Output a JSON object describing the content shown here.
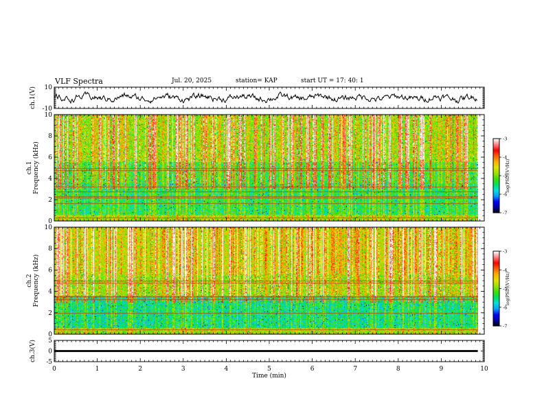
{
  "header": {
    "title": "VLF Spectra",
    "date": "Jul. 20, 2025",
    "station": "station= KAP",
    "start": "start UT = 17: 40: 1"
  },
  "colors": {
    "colormap": [
      "#000000",
      "#0000a0",
      "#0000ff",
      "#00a0ff",
      "#00e0e0",
      "#00e060",
      "#40e000",
      "#a0e000",
      "#e0e000",
      "#ffb000",
      "#ff6000",
      "#ff0000",
      "#ff8080",
      "#ffffff"
    ]
  },
  "chart_data": [
    {
      "type": "line",
      "name": "ch1-waveform",
      "ylabel": "ch.1(V)",
      "ylim": [
        -10,
        10
      ],
      "yticks": [
        "10",
        "-10"
      ],
      "xlim": [
        0,
        10
      ],
      "approx_range": [
        -5,
        5
      ]
    },
    {
      "type": "heatmap",
      "name": "ch1-spectrogram",
      "ylabel": "ch.1\nFrequency (kHz)",
      "ylabel_lines": [
        "ch.1",
        "Frequency (kHz)"
      ],
      "ylim": [
        0,
        10
      ],
      "yticks": [
        "0",
        "2",
        "4",
        "6",
        "8",
        "10"
      ],
      "xlim": [
        0,
        9.85
      ],
      "colorbar": {
        "label": "log(PSD)(V²/Hz)",
        "range": [
          -7,
          -3
        ],
        "ticks": [
          "-3",
          "-4",
          "-5",
          "-6",
          "-7"
        ]
      },
      "horizontal_lines_khz": [
        0.35,
        1.7,
        2.2,
        2.3,
        2.75,
        3.2,
        4.8,
        5.0
      ]
    },
    {
      "type": "heatmap",
      "name": "ch2-spectrogram",
      "ylabel": "ch.2\nFrequency (kHz)",
      "ylabel_lines": [
        "ch.2",
        "Frequency (kHz)"
      ],
      "ylim": [
        0,
        10
      ],
      "yticks": [
        "0",
        "2",
        "4",
        "6",
        "8",
        "10"
      ],
      "xlim": [
        0,
        9.85
      ],
      "colorbar": {
        "label": "log(PSD)(V²/Hz)",
        "range": [
          -7,
          -3
        ],
        "ticks": [
          "-3",
          "-4",
          "-5",
          "-6",
          "-7"
        ]
      },
      "horizontal_lines_khz": [
        0.45,
        2.0,
        3.3,
        3.5,
        4.8,
        5.0
      ]
    },
    {
      "type": "line",
      "name": "ch3-waveform",
      "ylabel": "ch.3(V)",
      "ylim": [
        -5,
        5
      ],
      "yticks": [
        "5",
        "0",
        "-5"
      ],
      "xlim": [
        0,
        10
      ],
      "approx_range": [
        -0.5,
        0.5
      ]
    }
  ],
  "xaxis": {
    "label": "Time (min)",
    "ticks": [
      "0",
      "1",
      "2",
      "3",
      "4",
      "5",
      "6",
      "7",
      "8",
      "9",
      "10"
    ],
    "range": [
      0,
      10
    ]
  }
}
